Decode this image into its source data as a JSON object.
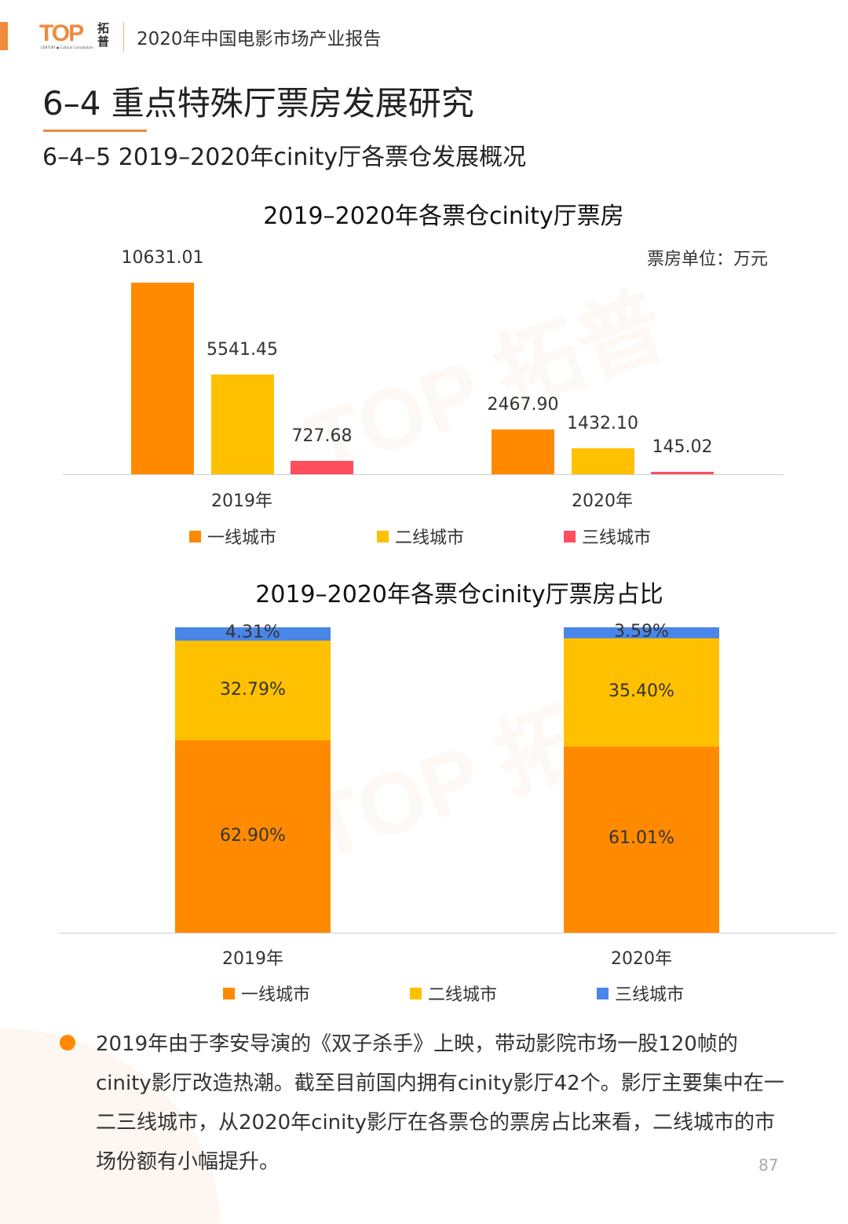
{
  "header": {
    "logo_text": "TOP",
    "logo_cn": "拓普",
    "logo_sub": "CENTURY ● Cultural Consultation",
    "report_title": "2020年中国电影市场产业报告"
  },
  "section_title": "6–4   重点特殊厅票房发展研究",
  "sub_title": "6–4–5 2019–2020年cinity厅各票仓发展概况",
  "colors": {
    "tier1": "#FF8A00",
    "tier2": "#FFC000",
    "tier3_chart1": "#FF4E5E",
    "tier3_chart2": "#4A86E8",
    "accent": "#F08A3C"
  },
  "chart_data": [
    {
      "type": "bar",
      "title": "2019–2020年各票仓cinity厅票房",
      "unit_label": "票房单位：万元",
      "categories": [
        "2019年",
        "2020年"
      ],
      "series": [
        {
          "name": "一线城市",
          "values": [
            10631.01,
            2467.9
          ],
          "labels": [
            "10631.01",
            "2467.90"
          ]
        },
        {
          "name": "二线城市",
          "values": [
            5541.45,
            1432.1
          ],
          "labels": [
            "5541.45",
            "1432.10"
          ]
        },
        {
          "name": "三线城市",
          "values": [
            727.68,
            145.02
          ],
          "labels": [
            "727.68",
            "145.02"
          ]
        }
      ],
      "legend": "bottom",
      "ylim": [
        0,
        10631.01
      ]
    },
    {
      "type": "bar",
      "stacked": true,
      "title": "2019–2020年各票仓cinity厅票房占比",
      "categories": [
        "2019年",
        "2020年"
      ],
      "series": [
        {
          "name": "一线城市",
          "values": [
            62.9,
            61.01
          ],
          "labels": [
            "62.90%",
            "61.01%"
          ]
        },
        {
          "name": "二线城市",
          "values": [
            32.79,
            35.4
          ],
          "labels": [
            "32.79%",
            "35.40%"
          ]
        },
        {
          "name": "三线城市",
          "values": [
            4.31,
            3.59
          ],
          "labels": [
            "4.31%",
            "3.59%"
          ]
        }
      ],
      "legend": "bottom",
      "ylim": [
        0,
        100
      ]
    }
  ],
  "body_text": "2019年由于李安导演的《双子杀手》上映，带动影院市场一股120帧的cinity影厅改造热潮。截至目前国内拥有cinity影厅42个。影厅主要集中在一二三线城市，从2020年cinity影厅在各票仓的票房占比来看，二线城市的市场份额有小幅提升。",
  "page_number": "87"
}
